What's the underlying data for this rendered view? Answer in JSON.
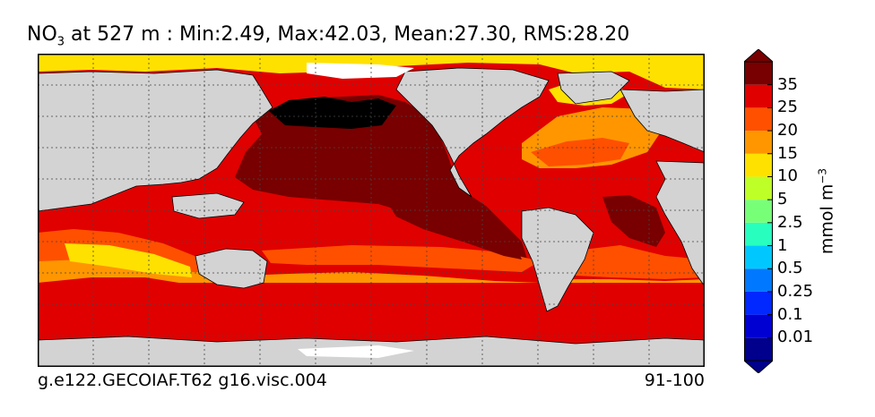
{
  "map": {
    "title_species": "NO",
    "title_species_sub": "3",
    "title_rest": " at 527 m : Min:2.49, Max:42.03, Mean:27.30, RMS:28.20",
    "footer_left": "g.e122.GECOIAF.T62 g16.visc.004",
    "footer_right": "91-100",
    "colorbar": {
      "unit_base": "mmol m",
      "unit_exp": "−3",
      "levels": [
        "0.01",
        "0.1",
        "0.25",
        "0.5",
        "1",
        "2.5",
        "5",
        "10",
        "15",
        "20",
        "25",
        "35"
      ],
      "colors": [
        "#00008c",
        "#0000d2",
        "#0028ff",
        "#0078ff",
        "#00c8ff",
        "#28ffbe",
        "#78ff78",
        "#beff28",
        "#ffe100",
        "#ff9600",
        "#ff5000",
        "#e00000",
        "#780000"
      ],
      "extend": "both"
    },
    "colors": {
      "land": "#d3d3d3",
      "sea_ice_mask": "#ffffff",
      "deep_red": "#780000",
      "red": "#e00000",
      "orange_red": "#ff5000",
      "orange": "#ff9600",
      "yellow": "#ffe100",
      "yellow_green": "#beff28",
      "green": "#78ff78",
      "black": "#000000"
    }
  }
}
